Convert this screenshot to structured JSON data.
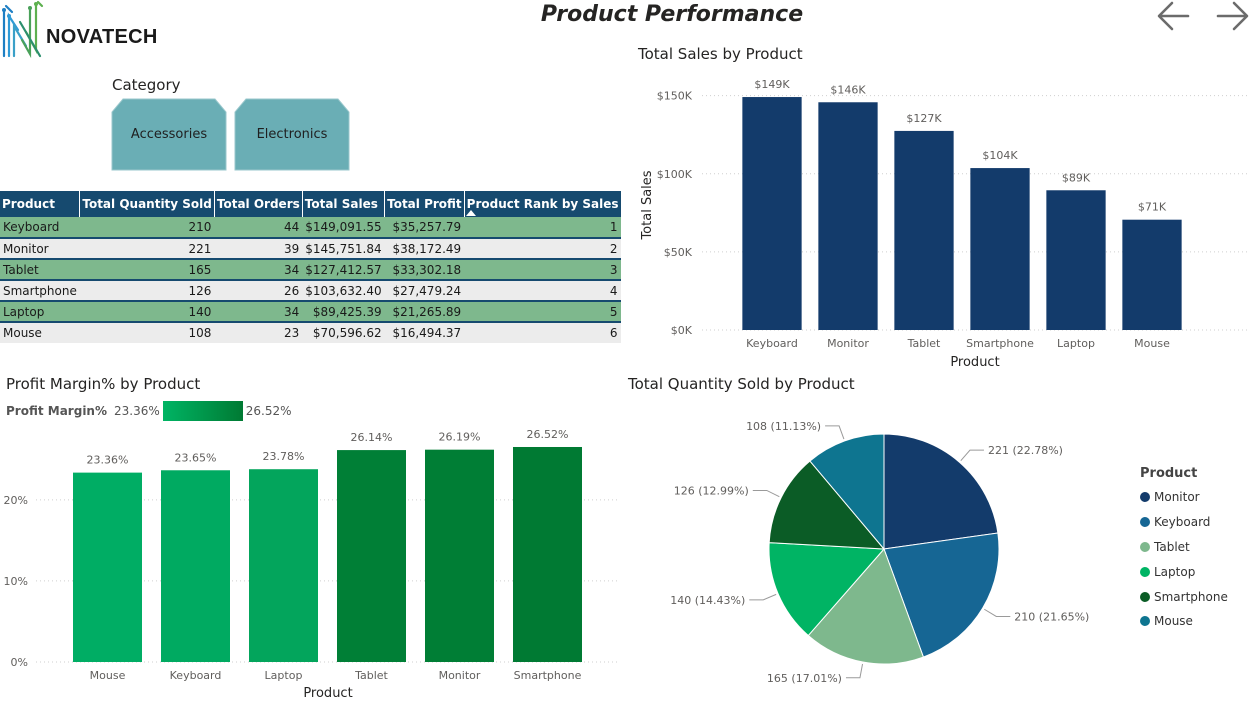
{
  "header": {
    "logo_text": "NOVATECH",
    "title": "Product Performance"
  },
  "navigation": {
    "back_icon": "arrow-left-icon",
    "forward_icon": "arrow-right-icon"
  },
  "slicer": {
    "label": "Category",
    "options": [
      "Accessories",
      "Electronics"
    ],
    "button_color": "#6aaeb5"
  },
  "table": {
    "columns": [
      "Product",
      "Total Quantity Sold",
      "Total Orders",
      "Total Sales",
      "Total Profit",
      "Product Rank by Sales"
    ],
    "sorted_column": "Product Rank by Sales",
    "rows": [
      [
        "Keyboard",
        "210",
        "44",
        "$149,091.55",
        "$35,257.79",
        "1"
      ],
      [
        "Monitor",
        "221",
        "39",
        "$145,751.84",
        "$38,172.49",
        "2"
      ],
      [
        "Tablet",
        "165",
        "34",
        "$127,412.57",
        "$33,302.18",
        "3"
      ],
      [
        "Smartphone",
        "126",
        "26",
        "$103,632.40",
        "$27,479.24",
        "4"
      ],
      [
        "Laptop",
        "140",
        "34",
        "$89,425.39",
        "$21,265.89",
        "5"
      ],
      [
        "Mouse",
        "108",
        "23",
        "$70,596.62",
        "$16,494.37",
        "6"
      ]
    ]
  },
  "colors": {
    "navy": "#133b6b",
    "header_blue": "#164a6f",
    "row_green": "#7eb88d",
    "row_grey": "#ececec"
  },
  "chart_data": [
    {
      "type": "bar",
      "title": "Total Sales by Product",
      "xlabel": "Product",
      "ylabel": "Total Sales",
      "categories": [
        "Keyboard",
        "Monitor",
        "Tablet",
        "Smartphone",
        "Laptop",
        "Mouse"
      ],
      "values": [
        149091.55,
        145751.84,
        127412.57,
        103632.4,
        89425.39,
        70596.62
      ],
      "data_labels": [
        "$149K",
        "$146K",
        "$127K",
        "$104K",
        "$89K",
        "$71K"
      ],
      "yticks": [
        0,
        50000,
        100000,
        150000
      ],
      "ytick_labels": [
        "$0K",
        "$50K",
        "$100K",
        "$150K"
      ],
      "ylim": [
        0,
        160000
      ],
      "grid": true,
      "color": "#133b6b"
    },
    {
      "type": "bar",
      "title": "Profit Margin% by Product",
      "xlabel": "Product",
      "legend_label": "Profit Margin%",
      "legend_min": "23.36%",
      "legend_max": "26.52%",
      "categories": [
        "Mouse",
        "Keyboard",
        "Laptop",
        "Tablet",
        "Monitor",
        "Smartphone"
      ],
      "values": [
        23.36,
        23.65,
        23.78,
        26.14,
        26.19,
        26.52
      ],
      "data_labels": [
        "23.36%",
        "23.65%",
        "23.78%",
        "26.14%",
        "26.19%",
        "26.52%"
      ],
      "yticks": [
        0,
        10,
        20
      ],
      "ytick_labels": [
        "0%",
        "10%",
        "20%"
      ],
      "ylim": [
        0,
        28
      ],
      "grid": true,
      "colors": [
        "#00ad64",
        "#00aa61",
        "#03a55c",
        "#007f36",
        "#007e35",
        "#007a33"
      ]
    },
    {
      "type": "pie",
      "title": "Total Quantity Sold by Product",
      "legend_title": "Product",
      "legend_position": "right",
      "labels": [
        "Monitor",
        "Keyboard",
        "Tablet",
        "Laptop",
        "Smartphone",
        "Mouse"
      ],
      "values": [
        221,
        210,
        165,
        140,
        126,
        108
      ],
      "data_labels": [
        "221 (22.78%)",
        "210 (21.65%)",
        "165 (17.01%)",
        "140 (14.43%)",
        "126 (12.99%)",
        "108 (11.13%)"
      ],
      "colors": [
        "#133b6b",
        "#166694",
        "#7eb88d",
        "#00b464",
        "#0b5c26",
        "#0e7590"
      ]
    }
  ]
}
